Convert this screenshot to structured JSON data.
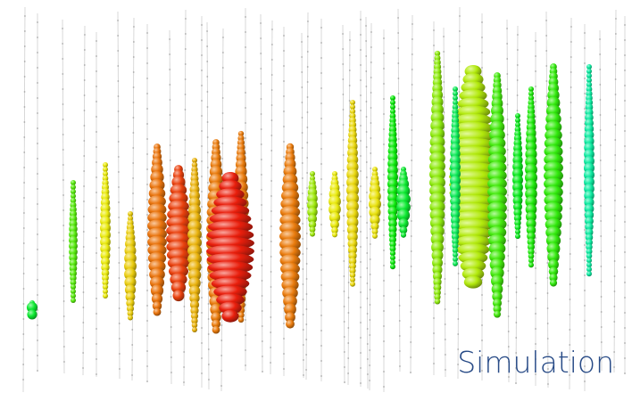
{
  "caption": "Simulation"
}
